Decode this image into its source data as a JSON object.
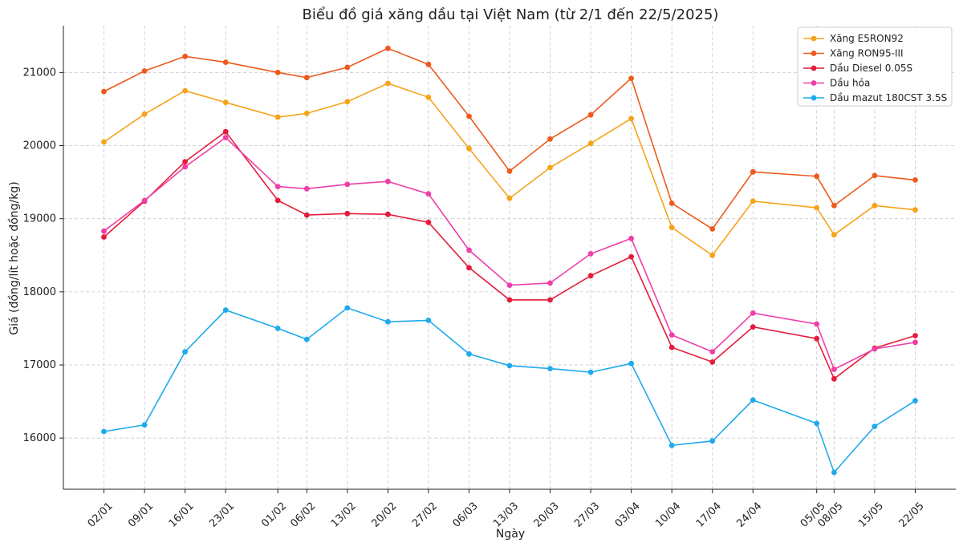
{
  "chart_data": {
    "type": "line",
    "title": "Biểu đồ giá xăng dầu tại Việt Nam (từ 2/1 đến 22/5/2025)",
    "xlabel": "Ngày",
    "ylabel": "Giá (đồng/lít hoặc đồng/kg)",
    "x_days": [
      2,
      9,
      16,
      23,
      32,
      37,
      44,
      51,
      58,
      65,
      72,
      79,
      86,
      93,
      100,
      107,
      114,
      125,
      128,
      135,
      142
    ],
    "x": [
      "02/01",
      "09/01",
      "16/01",
      "23/01",
      "01/02",
      "06/02",
      "13/02",
      "20/02",
      "27/02",
      "06/03",
      "13/03",
      "20/03",
      "27/03",
      "03/04",
      "10/04",
      "17/04",
      "24/04",
      "05/05",
      "08/05",
      "15/05",
      "22/05"
    ],
    "xlim": [
      -5,
      149
    ],
    "ylim": [
      15300,
      21640
    ],
    "yticks": [
      16000,
      17000,
      18000,
      19000,
      20000,
      21000
    ],
    "grid": true,
    "legend_position": "top-right",
    "series": [
      {
        "name": "Xăng E5RON92",
        "color": "#f5a31a",
        "values": [
          20050,
          20430,
          20750,
          20590,
          20390,
          20440,
          20600,
          20850,
          20660,
          19960,
          19280,
          19700,
          20030,
          20370,
          18880,
          18500,
          19240,
          19150,
          18780,
          19180,
          19120
        ]
      },
      {
        "name": "Xăng RON95-III",
        "color": "#ec5a1c",
        "values": [
          20740,
          21020,
          21220,
          21140,
          21000,
          20930,
          21070,
          21330,
          21110,
          20400,
          19650,
          20090,
          20420,
          20920,
          19210,
          18860,
          19640,
          19580,
          19180,
          19590,
          19530
        ]
      },
      {
        "name": "Dầu Diesel 0.05S",
        "color": "#e51c3c",
        "values": [
          18750,
          19240,
          19780,
          20190,
          19250,
          19050,
          19070,
          19060,
          18950,
          18330,
          17890,
          17890,
          18220,
          18480,
          17240,
          17040,
          17520,
          17360,
          16810,
          17230,
          17400
        ]
      },
      {
        "name": "Dầu hỏa",
        "color": "#ee3fa8",
        "values": [
          18830,
          19250,
          19710,
          20110,
          19440,
          19410,
          19470,
          19510,
          19340,
          18570,
          18090,
          18120,
          18520,
          18730,
          17410,
          17180,
          17710,
          17560,
          16940,
          17220,
          17310
        ]
      },
      {
        "name": "Dầu mazut 180CST 3.5S",
        "color": "#1eaaec",
        "values": [
          16090,
          16180,
          17180,
          17750,
          17500,
          17350,
          17780,
          17590,
          17610,
          17150,
          16990,
          16950,
          16900,
          17020,
          15900,
          15960,
          16520,
          16200,
          15530,
          16160,
          16510
        ]
      }
    ]
  }
}
